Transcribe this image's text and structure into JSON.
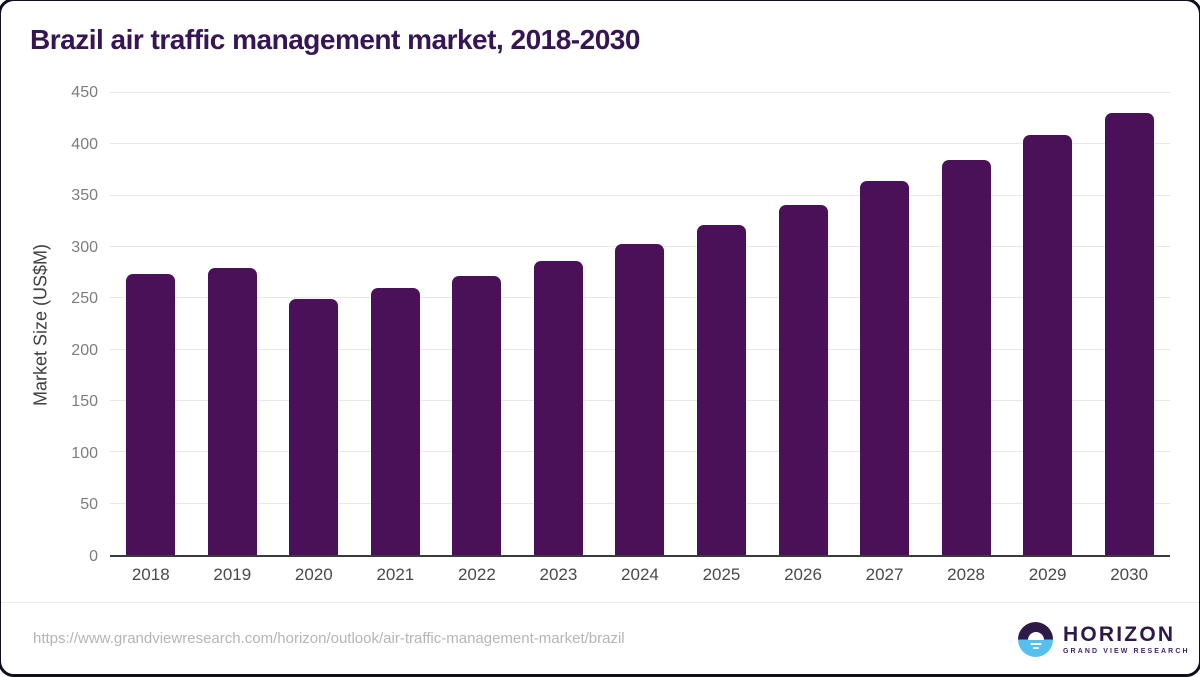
{
  "title": "Brazil air traffic management market, 2018-2030",
  "chart_data": {
    "type": "bar",
    "title": "Brazil air traffic management market, 2018-2030",
    "categories": [
      "2018",
      "2019",
      "2020",
      "2021",
      "2022",
      "2023",
      "2024",
      "2025",
      "2026",
      "2027",
      "2028",
      "2029",
      "2030"
    ],
    "values": [
      274,
      280,
      249,
      260,
      272,
      286,
      303,
      321,
      341,
      364,
      385,
      409,
      431
    ],
    "xlabel": "",
    "ylabel": "Market Size (US$M)",
    "ylim": [
      0,
      450
    ],
    "ytick_step": 50,
    "grid": true,
    "legend": false
  },
  "colors": {
    "bar": "#4a1158",
    "title": "#361553",
    "gridline": "#e8e8e8",
    "axis_line": "#3b3b3b",
    "logo_purple": "#2e1a47",
    "logo_blue": "#56c0ec"
  },
  "footer": {
    "source_url": "https://www.grandviewresearch.com/horizon/outlook/air-traffic-management-market/brazil",
    "logo": {
      "name": "HORIZON",
      "subtitle": "GRAND VIEW RESEARCH"
    }
  }
}
